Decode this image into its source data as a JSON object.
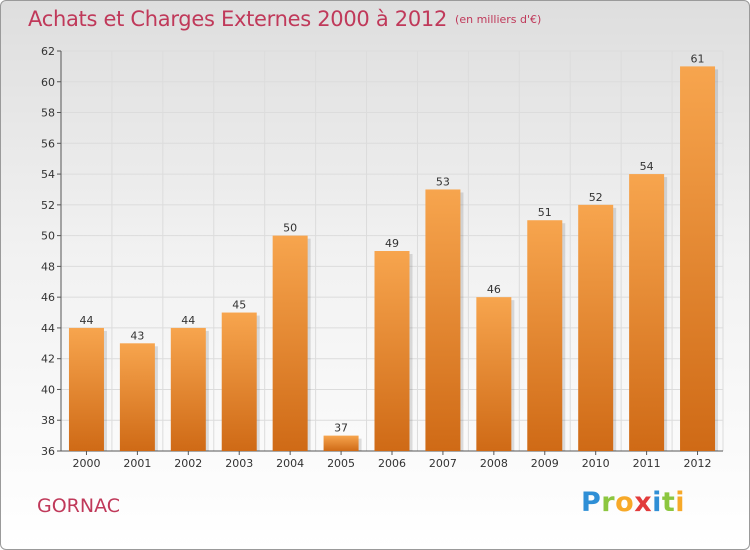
{
  "header": {
    "title": "Achats et Charges Externes 2000 à 2012",
    "unit": "(en milliers d'€)"
  },
  "footer": {
    "commune": "GORNAC",
    "logo_text": "Proxiti"
  },
  "colors": {
    "accent": "#c0395a",
    "bar_top": "#f7a54e",
    "bar_bottom": "#cf6a16",
    "grid": "#dcdcdc"
  },
  "chart_data": {
    "type": "bar",
    "title": "Achats et Charges Externes 2000 à 2012",
    "subtitle": "(en milliers d'€)",
    "xlabel": "",
    "ylabel": "",
    "categories": [
      "2000",
      "2001",
      "2002",
      "2003",
      "2004",
      "2005",
      "2006",
      "2007",
      "2008",
      "2009",
      "2010",
      "2011",
      "2012"
    ],
    "values": [
      44,
      43,
      44,
      45,
      50,
      37,
      49,
      53,
      46,
      51,
      52,
      54,
      61
    ],
    "data_labels": [
      "44",
      "43",
      "44",
      "45",
      "50",
      "37",
      "49",
      "53",
      "46",
      "51",
      "52",
      "54",
      "61"
    ],
    "ylim": [
      36,
      62
    ],
    "yticks": [
      36,
      38,
      40,
      42,
      44,
      46,
      48,
      50,
      52,
      54,
      56,
      58,
      60,
      62
    ],
    "ytick_labels": [
      "36",
      "38",
      "40",
      "42",
      "44",
      "46",
      "48",
      "50",
      "52",
      "54",
      "56",
      "58",
      "60",
      "62"
    ],
    "grid": true
  }
}
